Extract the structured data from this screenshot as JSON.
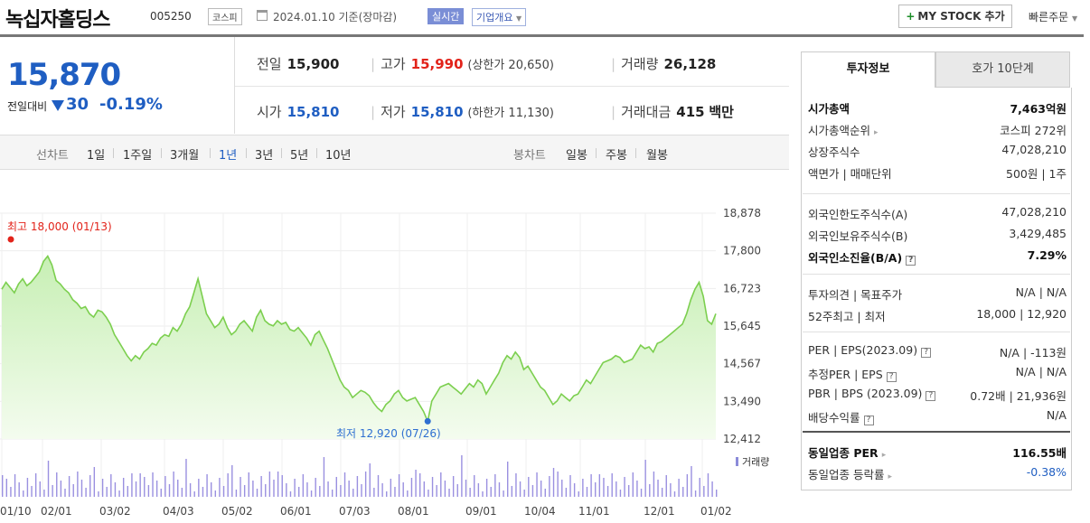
{
  "header": {
    "title": "녹십자홀딩스",
    "code": "005250",
    "market": "코스피",
    "date": "2024.01.10  기준(장마감)",
    "realtime": "실시간",
    "corp_info": "기업개요",
    "mystock_label": "MY STOCK 추가",
    "quick_order": "빠른주문"
  },
  "price": {
    "current": "15,870",
    "change_label": "전일대비",
    "change": "30",
    "change_pct": "-0.19%"
  },
  "quote": {
    "prev": {
      "label": "전일",
      "value": "15,900"
    },
    "high": {
      "label": "고가",
      "value": "15,990",
      "limit": "(상한가 20,650)"
    },
    "volume": {
      "label": "거래량",
      "value": "26,128"
    },
    "open": {
      "label": "시가",
      "value": "15,810"
    },
    "low": {
      "label": "저가",
      "value": "15,810",
      "limit": "(하한가 11,130)"
    },
    "amount": {
      "label": "거래대금",
      "value": "415",
      "unit": "백만"
    }
  },
  "periods": {
    "line_label": "선차트",
    "line": [
      "1일",
      "1주일",
      "3개월",
      "1년",
      "3년",
      "5년",
      "10년"
    ],
    "active": "1년",
    "candle_label": "봉차트",
    "candle": [
      "일봉",
      "주봉",
      "월봉"
    ]
  },
  "chart_data": {
    "type": "area",
    "y_ticks": [
      "18,878",
      "17,800",
      "16,723",
      "15,645",
      "14,567",
      "13,490",
      "12,412"
    ],
    "ylim": [
      12412,
      18878
    ],
    "x_ticks": [
      "01/10",
      "02/01",
      "03/02",
      "04/03",
      "05/02",
      "06/01",
      "07/03",
      "08/01",
      "09/01",
      "10/04",
      "11/01",
      "12/01",
      "01/02"
    ],
    "high_label": "최고 18,000 (01/13)",
    "low_label": "최저 12,920 (07/26)",
    "volume_label": "거래량",
    "series": [
      {
        "values": [
          16700,
          16900,
          16750,
          16600,
          16850,
          17000,
          16800,
          16900,
          17050,
          17200,
          17500,
          17650,
          17400,
          16950,
          16850,
          16700,
          16600,
          16400,
          16300,
          16150,
          16200,
          16000,
          15900,
          16100,
          16050,
          15900,
          15700,
          15400,
          15200,
          15000,
          14800,
          14650,
          14800,
          14700,
          14900,
          15000,
          15150,
          15100,
          15300,
          15400,
          15350,
          15600,
          15500,
          15700,
          16000,
          16200,
          16600,
          17000,
          16500,
          16000,
          15800,
          15600,
          15700,
          15900,
          15600,
          15400,
          15500,
          15700,
          15800,
          15650,
          15500,
          15900,
          16100,
          15800,
          15700,
          15650,
          15800,
          15700,
          15750,
          15550,
          15500,
          15600,
          15450,
          15300,
          15100,
          15400,
          15500,
          15250,
          15000,
          14700,
          14400,
          14100,
          13900,
          13800,
          13600,
          13700,
          13800,
          13750,
          13650,
          13450,
          13300,
          13200,
          13400,
          13500,
          13700,
          13800,
          13600,
          13500,
          13550,
          13600,
          13400,
          13200,
          12920,
          13500,
          13700,
          13900,
          13950,
          14000,
          13900,
          13800,
          13700,
          13850,
          14000,
          13900,
          14100,
          14000,
          13700,
          13900,
          14100,
          14300,
          14600,
          14800,
          14700,
          14900,
          14750,
          14400,
          14500,
          14300,
          14100,
          13900,
          13800,
          13600,
          13400,
          13500,
          13700,
          13600,
          13500,
          13650,
          13700,
          13900,
          14100,
          14000,
          14200,
          14400,
          14600,
          14650,
          14700,
          14800,
          14750,
          14600,
          14650,
          14700,
          14900,
          15100,
          15000,
          15050,
          14900,
          15150,
          15200,
          15300,
          15400,
          15500,
          15600,
          15700,
          16000,
          16400,
          16700,
          16900,
          16500,
          15800,
          15700,
          16000
        ]
      }
    ]
  },
  "info": {
    "tab_active": "투자정보",
    "tab_other": "호가 10단계",
    "rows1": [
      {
        "label": "시가총액",
        "value": "7,463억원"
      },
      {
        "label": "시가총액순위",
        "value": "코스피 272위"
      },
      {
        "label": "상장주식수",
        "value": "47,028,210"
      },
      {
        "label": "액면가 | 매매단위",
        "value": "500원 | 1주"
      }
    ],
    "rows2": [
      {
        "label": "외국인한도주식수(A)",
        "value": "47,028,210"
      },
      {
        "label": "외국인보유주식수(B)",
        "value": "3,429,485"
      },
      {
        "label": "외국인소진율(B/A)",
        "value": "7.29%"
      }
    ],
    "rows3": [
      {
        "label": "투자의견 | 목표주가",
        "value": "N/A | N/A"
      },
      {
        "label": "52주최고 | 최저",
        "value": "18,000 | 12,920"
      }
    ],
    "rows4": [
      {
        "label": "PER | EPS(2023.09)",
        "value": "N/A | -113원"
      },
      {
        "label": "추정PER | EPS",
        "value": "N/A | N/A"
      },
      {
        "label": "PBR | BPS (2023.09)",
        "value": "0.72배 | 21,936원"
      },
      {
        "label": "배당수익률",
        "value": "N/A"
      }
    ],
    "rows5": [
      {
        "label": "동일업종 PER",
        "value": "116.55배"
      },
      {
        "label": "동일업종 등락률",
        "value": "-0.38%"
      }
    ]
  }
}
